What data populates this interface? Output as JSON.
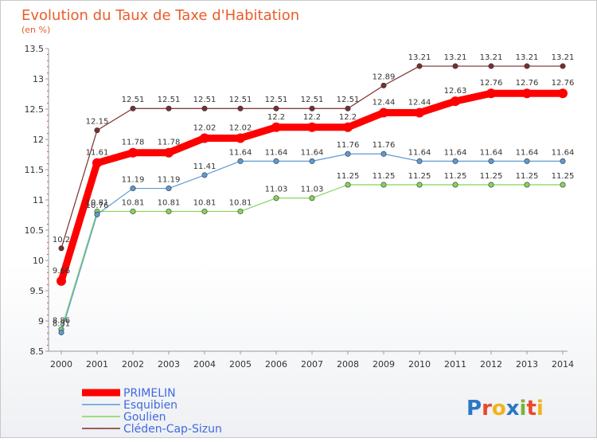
{
  "chart_data": {
    "type": "line",
    "title": "Evolution du Taux de Taxe d'Habitation",
    "subtitle": "(en %)",
    "x": [
      "2000",
      "2001",
      "2002",
      "2003",
      "2004",
      "2005",
      "2006",
      "2007",
      "2008",
      "2009",
      "2010",
      "2011",
      "2012",
      "2013",
      "2014"
    ],
    "yticks": [
      "8.5",
      "9",
      "9.5",
      "10",
      "10.5",
      "11",
      "11.5",
      "12",
      "12.5",
      "13",
      "13.5"
    ],
    "ylim": [
      8.5,
      13.5
    ],
    "series": [
      {
        "name": "PRIMELIN",
        "color": "#ff0000",
        "values": [
          9.66,
          11.61,
          11.78,
          11.78,
          12.02,
          12.02,
          12.2,
          12.2,
          12.2,
          12.44,
          12.44,
          12.63,
          12.76,
          12.76,
          12.76
        ],
        "labels": [
          "9.66",
          "11.61",
          "11.78",
          "11.78",
          "12.02",
          "12.02",
          "12.2",
          "12.2",
          "12.2",
          "12.44",
          "12.44",
          "12.63",
          "12.76",
          "12.76",
          "12.76"
        ]
      },
      {
        "name": "Esquibien",
        "color": "#5b9bd5",
        "values": [
          8.81,
          10.76,
          11.19,
          11.19,
          11.41,
          11.64,
          11.64,
          11.64,
          11.76,
          11.76,
          11.64,
          11.64,
          11.64,
          11.64,
          11.64
        ],
        "labels": [
          "8.81",
          "10.76",
          "11.19",
          "11.19",
          "11.41",
          "11.64",
          "11.64",
          "11.64",
          "11.76",
          "11.76",
          "11.64",
          "11.64",
          "11.64",
          "11.64",
          "11.64"
        ]
      },
      {
        "name": "Goulien",
        "color": "#86d45d",
        "values": [
          8.86,
          10.81,
          10.81,
          10.81,
          10.81,
          10.81,
          11.03,
          11.03,
          11.25,
          11.25,
          11.25,
          11.25,
          11.25,
          11.25,
          11.25
        ],
        "labels": [
          "8.86",
          "10.81",
          "10.81",
          "10.81",
          "10.81",
          "10.81",
          "11.03",
          "11.03",
          "11.25",
          "11.25",
          "11.25",
          "11.25",
          "11.25",
          "11.25",
          "11.25"
        ]
      },
      {
        "name": "Cléden-Cap-Sizun",
        "color": "#7a2e2e",
        "values": [
          10.2,
          12.15,
          12.51,
          12.51,
          12.51,
          12.51,
          12.51,
          12.51,
          12.51,
          12.89,
          13.21,
          13.21,
          13.21,
          13.21,
          13.21
        ],
        "labels": [
          "10.2",
          "12.15",
          "12.51",
          "12.51",
          "12.51",
          "12.51",
          "12.51",
          "12.51",
          "12.51",
          "12.89",
          "13.21",
          "13.21",
          "13.21",
          "13.21",
          "13.21"
        ]
      }
    ],
    "grid": false,
    "legend_position": "bottom-left"
  },
  "brand": {
    "name": "Proxiti"
  }
}
